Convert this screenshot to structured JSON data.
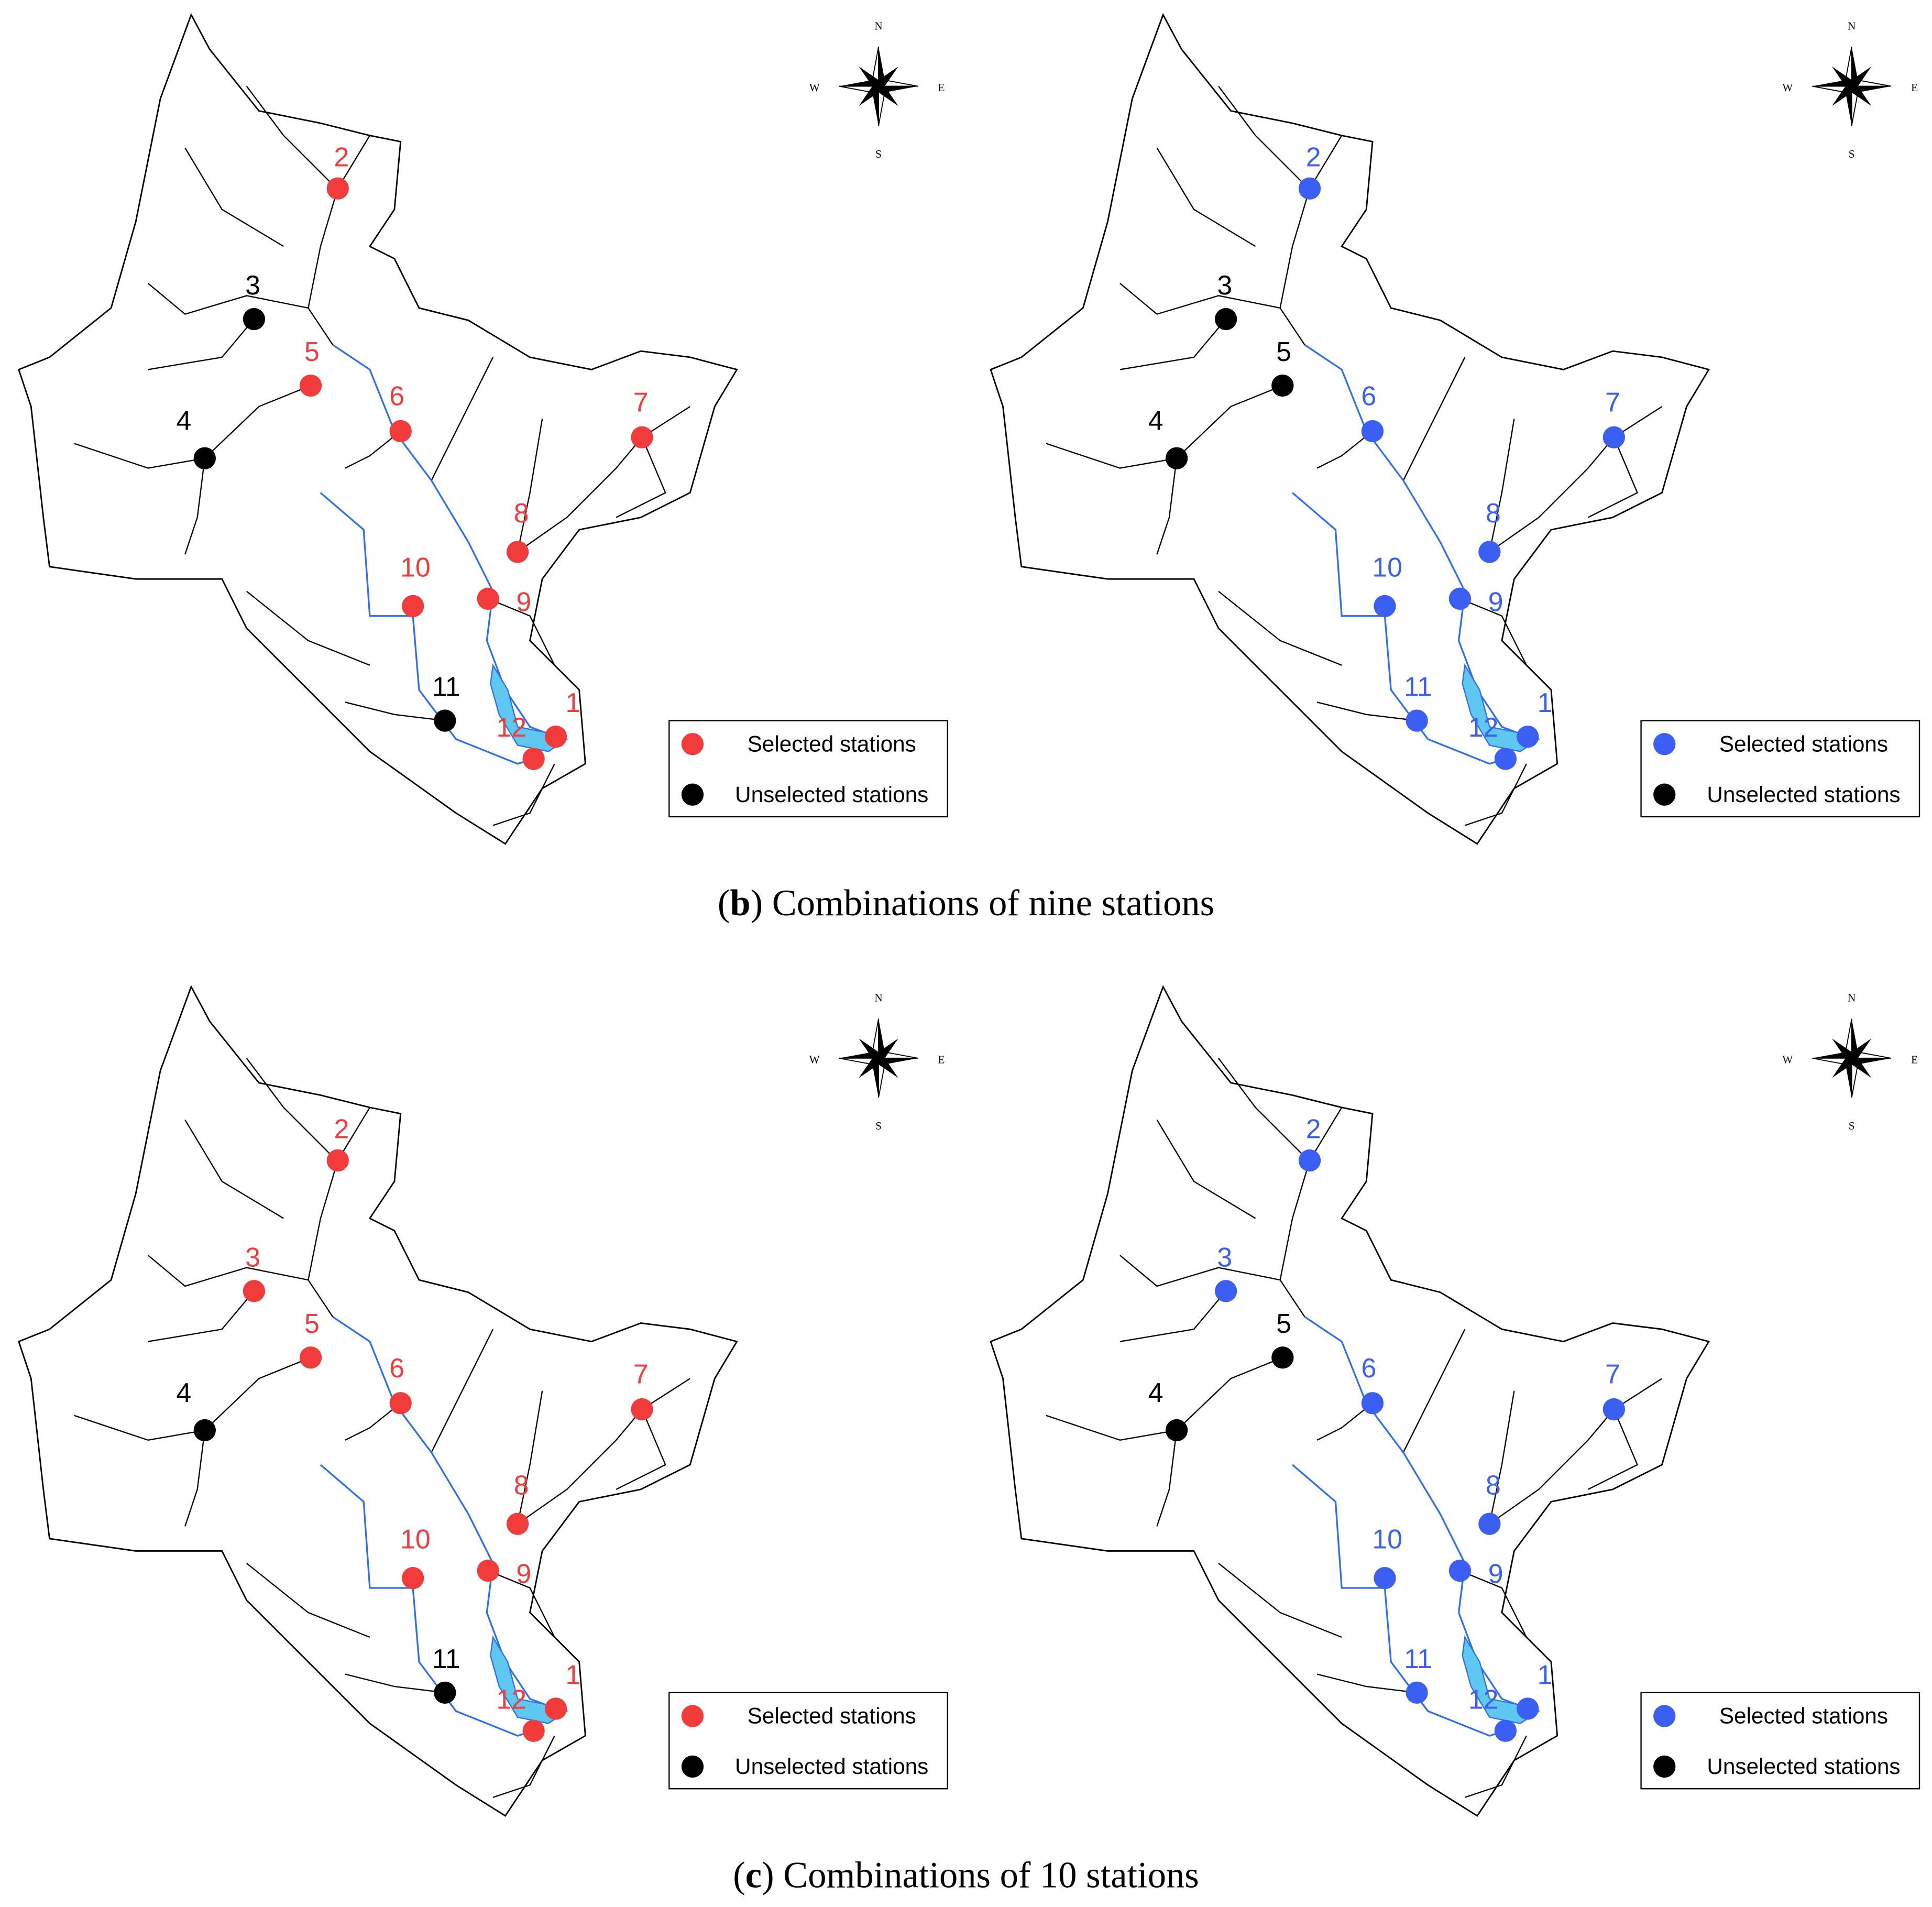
{
  "rows": [
    {
      "caption": {
        "open": "(",
        "label": "b",
        "rest": ") Combinations of nine stations"
      },
      "panels": [
        {
          "compass": {
            "n": "N",
            "s": "S",
            "e": "E",
            "w": "W"
          },
          "legend": [
            {
              "label": "Selected stations",
              "color": "#f23b3b"
            },
            {
              "label": "Unselected stations",
              "color": "#000000"
            }
          ],
          "stations": [
            {
              "label": "1",
              "selected": true
            },
            {
              "label": "2",
              "selected": true
            },
            {
              "label": "3",
              "selected": false
            },
            {
              "label": "4",
              "selected": false
            },
            {
              "label": "5",
              "selected": true
            },
            {
              "label": "6",
              "selected": true
            },
            {
              "label": "7",
              "selected": true
            },
            {
              "label": "8",
              "selected": true
            },
            {
              "label": "9",
              "selected": true
            },
            {
              "label": "10",
              "selected": true
            },
            {
              "label": "11",
              "selected": false
            },
            {
              "label": "12",
              "selected": true
            }
          ]
        },
        {
          "compass": {
            "n": "N",
            "s": "S",
            "e": "E",
            "w": "W"
          },
          "legend": [
            {
              "label": "Selected stations",
              "color": "#3a5ff2"
            },
            {
              "label": "Unselected stations",
              "color": "#000000"
            }
          ],
          "stations": [
            {
              "label": "1",
              "selected": true
            },
            {
              "label": "2",
              "selected": true
            },
            {
              "label": "3",
              "selected": false
            },
            {
              "label": "4",
              "selected": false
            },
            {
              "label": "5",
              "selected": false
            },
            {
              "label": "6",
              "selected": true
            },
            {
              "label": "7",
              "selected": true
            },
            {
              "label": "8",
              "selected": true
            },
            {
              "label": "9",
              "selected": true
            },
            {
              "label": "10",
              "selected": true
            },
            {
              "label": "11",
              "selected": true
            },
            {
              "label": "12",
              "selected": true
            }
          ]
        }
      ]
    },
    {
      "caption": {
        "open": "(",
        "label": "c",
        "rest": ") Combinations of 10 stations"
      },
      "panels": [
        {
          "compass": {
            "n": "N",
            "s": "S",
            "e": "E",
            "w": "W"
          },
          "legend": [
            {
              "label": "Selected stations",
              "color": "#f23b3b"
            },
            {
              "label": "Unselected stations",
              "color": "#000000"
            }
          ],
          "stations": [
            {
              "label": "1",
              "selected": true
            },
            {
              "label": "2",
              "selected": true
            },
            {
              "label": "3",
              "selected": true
            },
            {
              "label": "4",
              "selected": false
            },
            {
              "label": "5",
              "selected": true
            },
            {
              "label": "6",
              "selected": true
            },
            {
              "label": "7",
              "selected": true
            },
            {
              "label": "8",
              "selected": true
            },
            {
              "label": "9",
              "selected": true
            },
            {
              "label": "10",
              "selected": true
            },
            {
              "label": "11",
              "selected": false
            },
            {
              "label": "12",
              "selected": true
            }
          ]
        },
        {
          "compass": {
            "n": "N",
            "s": "S",
            "e": "E",
            "w": "W"
          },
          "legend": [
            {
              "label": "Selected stations",
              "color": "#3a5ff2"
            },
            {
              "label": "Unselected stations",
              "color": "#000000"
            }
          ],
          "stations": [
            {
              "label": "1",
              "selected": true
            },
            {
              "label": "2",
              "selected": true
            },
            {
              "label": "3",
              "selected": true
            },
            {
              "label": "4",
              "selected": false
            },
            {
              "label": "5",
              "selected": false
            },
            {
              "label": "6",
              "selected": true
            },
            {
              "label": "7",
              "selected": true
            },
            {
              "label": "8",
              "selected": true
            },
            {
              "label": "9",
              "selected": true
            },
            {
              "label": "10",
              "selected": true
            },
            {
              "label": "11",
              "selected": true
            },
            {
              "label": "12",
              "selected": true
            }
          ]
        }
      ]
    }
  ]
}
